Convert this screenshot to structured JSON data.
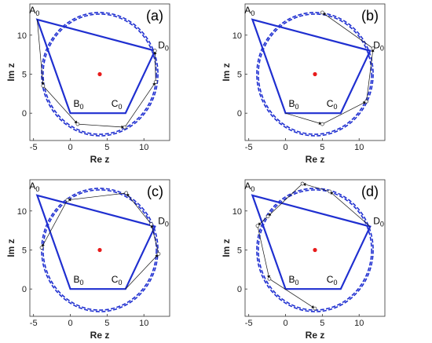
{
  "chart_data": [
    {
      "type": "line",
      "panel_label": "(a)",
      "xlabel": "Re z",
      "ylabel": "Im z",
      "xlim": [
        -5.5,
        13.5
      ],
      "ylim": [
        -3.5,
        14
      ],
      "xticks": [
        "-5",
        "0",
        "5",
        "10"
      ],
      "yticks": [
        "0",
        "5",
        "10"
      ],
      "grid": false,
      "circle": {
        "cx": 4,
        "cy": 5,
        "r": 7.8,
        "color": "#1f2fd0",
        "style": "dashed"
      },
      "center": {
        "x": 4,
        "y": 5,
        "color": "#e81c1c"
      },
      "polygon": {
        "color": "#1f2fd0",
        "vertices": [
          {
            "name": "A",
            "sub": "0",
            "x": -4.5,
            "y": 12
          },
          {
            "name": "D",
            "sub": "0",
            "x": 11.5,
            "y": 8
          },
          {
            "name": "C",
            "sub": "0",
            "x": 7.5,
            "y": 0
          },
          {
            "name": "B",
            "sub": "0",
            "x": 0,
            "y": 0
          }
        ]
      },
      "trajectory": [
        [
          -4.5,
          12
        ],
        [
          -3.7,
          3.5
        ],
        [
          1,
          -1.4
        ],
        [
          7.4,
          -1.8
        ],
        [
          11.6,
          4
        ],
        [
          11.5,
          8
        ]
      ]
    },
    {
      "type": "line",
      "panel_label": "(b)",
      "xlabel": "Re z",
      "ylabel": "Im z",
      "xlim": [
        -5.5,
        13.5
      ],
      "ylim": [
        -3.5,
        14
      ],
      "xticks": [
        "-5",
        "0",
        "5",
        "10"
      ],
      "yticks": [
        "0",
        "5",
        "10"
      ],
      "grid": false,
      "circle": {
        "cx": 4,
        "cy": 5,
        "r": 7.8,
        "color": "#1f2fd0",
        "style": "dashed"
      },
      "center": {
        "x": 4,
        "y": 5,
        "color": "#e81c1c"
      },
      "polygon": {
        "color": "#1f2fd0",
        "vertices": [
          {
            "name": "A",
            "sub": "0",
            "x": -4.5,
            "y": 12
          },
          {
            "name": "D",
            "sub": "0",
            "x": 11.5,
            "y": 8
          },
          {
            "name": "C",
            "sub": "0",
            "x": 7.5,
            "y": 0
          },
          {
            "name": "B",
            "sub": "0",
            "x": 0,
            "y": 0
          }
        ]
      },
      "trajectory": [
        [
          0,
          0
        ],
        [
          5,
          -1.4
        ],
        [
          11,
          1.5
        ],
        [
          11.9,
          8.3
        ],
        [
          5,
          12.9
        ]
      ]
    },
    {
      "type": "line",
      "panel_label": "(c)",
      "xlabel": "Re z",
      "ylabel": "Im z",
      "xlim": [
        -5.5,
        13.5
      ],
      "ylim": [
        -3.5,
        14
      ],
      "xticks": [
        "-5",
        "0",
        "5",
        "10"
      ],
      "yticks": [
        "0",
        "5",
        "10"
      ],
      "grid": false,
      "circle": {
        "cx": 4,
        "cy": 5,
        "r": 7.8,
        "color": "#1f2fd0",
        "style": "dashed"
      },
      "center": {
        "x": 4,
        "y": 5,
        "color": "#e81c1c"
      },
      "polygon": {
        "color": "#1f2fd0",
        "vertices": [
          {
            "name": "A",
            "sub": "0",
            "x": -4.5,
            "y": 12
          },
          {
            "name": "D",
            "sub": "0",
            "x": 11.5,
            "y": 8
          },
          {
            "name": "C",
            "sub": "0",
            "x": 7.5,
            "y": 0
          },
          {
            "name": "B",
            "sub": "0",
            "x": 0,
            "y": 0
          }
        ]
      },
      "trajectory": [
        [
          7.5,
          0
        ],
        [
          12,
          4.5
        ],
        [
          11,
          8.3
        ],
        [
          7.6,
          12.3
        ],
        [
          -0.4,
          11.4
        ],
        [
          -3.9,
          5.3
        ]
      ]
    },
    {
      "type": "line",
      "panel_label": "(d)",
      "xlabel": "Re z",
      "ylabel": "Im z",
      "xlim": [
        -5.5,
        13.5
      ],
      "ylim": [
        -3.5,
        14
      ],
      "xticks": [
        "-5",
        "0",
        "5",
        "10"
      ],
      "yticks": [
        "0",
        "5",
        "10"
      ],
      "grid": false,
      "circle": {
        "cx": 4,
        "cy": 5,
        "r": 7.8,
        "color": "#1f2fd0",
        "style": "dashed"
      },
      "center": {
        "x": 4,
        "y": 5,
        "color": "#e81c1c"
      },
      "polygon": {
        "color": "#1f2fd0",
        "vertices": [
          {
            "name": "A",
            "sub": "0",
            "x": -4.5,
            "y": 12
          },
          {
            "name": "D",
            "sub": "0",
            "x": 11.5,
            "y": 8
          },
          {
            "name": "C",
            "sub": "0",
            "x": 7.5,
            "y": 0
          },
          {
            "name": "B",
            "sub": "0",
            "x": 0,
            "y": 0
          }
        ]
      },
      "trajectory": [
        [
          11.5,
          8
        ],
        [
          6,
          12.5
        ],
        [
          2.3,
          13.5
        ],
        [
          -2.4,
          9.3
        ],
        [
          -3.8,
          8.1
        ],
        [
          -2.2,
          1.3
        ],
        [
          4,
          -2.5
        ]
      ]
    }
  ]
}
